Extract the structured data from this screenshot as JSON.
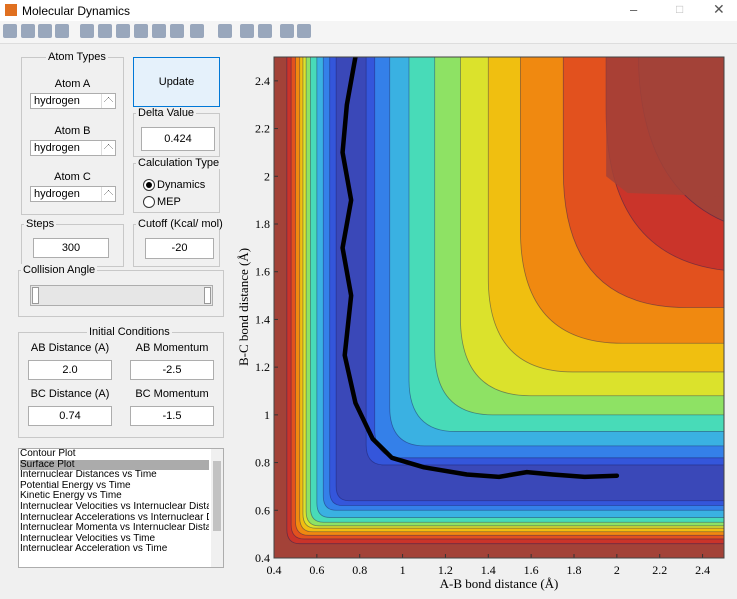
{
  "window": {
    "title": "Molecular Dynamics"
  },
  "atom_types": {
    "title": "Atom Types",
    "atoms": [
      {
        "label": "Atom A",
        "value": "hydrogen"
      },
      {
        "label": "Atom B",
        "value": "hydrogen"
      },
      {
        "label": "Atom C",
        "value": "hydrogen"
      }
    ]
  },
  "update_button": "Update",
  "delta_value": {
    "label": "Delta Value",
    "value": "0.424"
  },
  "calculation_type": {
    "label": "Calculation Type",
    "options": [
      "Dynamics",
      "MEP"
    ],
    "selected": "Dynamics"
  },
  "steps": {
    "label": "Steps",
    "value": "300"
  },
  "cutoff": {
    "label": "Cutoff (Kcal/ mol)",
    "value": "-20"
  },
  "collision_angle": {
    "label": "Collision Angle"
  },
  "initial_conditions": {
    "title": "Initial Conditions",
    "fields": [
      {
        "label": "AB Distance (A)",
        "value": "2.0"
      },
      {
        "label": "AB Momentum",
        "value": "-2.5"
      },
      {
        "label": "BC Distance (A)",
        "value": "0.74"
      },
      {
        "label": "BC Momentum",
        "value": "-1.5"
      }
    ]
  },
  "plot_list": {
    "items": [
      "Contour Plot",
      "Surface Plot",
      "Internuclear Distances vs Time",
      "Potential Energy vs Time",
      "Kinetic Energy vs Time",
      "Internuclear Velocities vs Internuclear Distance",
      "Internuclear Accelerations vs Internuclear Distance",
      "Internuclear Momenta vs Internuclear Distance",
      "Internuclear Velocities vs Time",
      "Internuclear Acceleration vs Time"
    ],
    "selected": 1
  },
  "chart_data": {
    "type": "line",
    "xlabel": "A-B bond distance (Å)",
    "ylabel": "B-C bond distance (Å)",
    "x": [
      0.78,
      0.74,
      0.72,
      0.76,
      0.72,
      0.76,
      0.73,
      0.78,
      0.86,
      0.95,
      1.1,
      1.3,
      1.45,
      1.58,
      1.7,
      1.85,
      2.0
    ],
    "series": [
      {
        "color": "#000000",
        "values": [
          2.5,
          2.3,
          2.1,
          1.9,
          1.7,
          1.5,
          1.25,
          1.05,
          0.9,
          0.82,
          0.78,
          0.75,
          0.74,
          0.76,
          0.75,
          0.74,
          0.745
        ]
      }
    ],
    "xlim": [
      0.4,
      2.5
    ],
    "ylim": [
      0.4,
      2.5
    ],
    "xticks": [
      0.4,
      0.6,
      0.8,
      1,
      1.2,
      1.4,
      1.6,
      1.8,
      2,
      2.2,
      2.4
    ],
    "yticks": [
      0.4,
      0.6,
      0.8,
      1,
      1.2,
      1.4,
      1.6,
      1.8,
      2,
      2.2,
      2.4
    ]
  }
}
